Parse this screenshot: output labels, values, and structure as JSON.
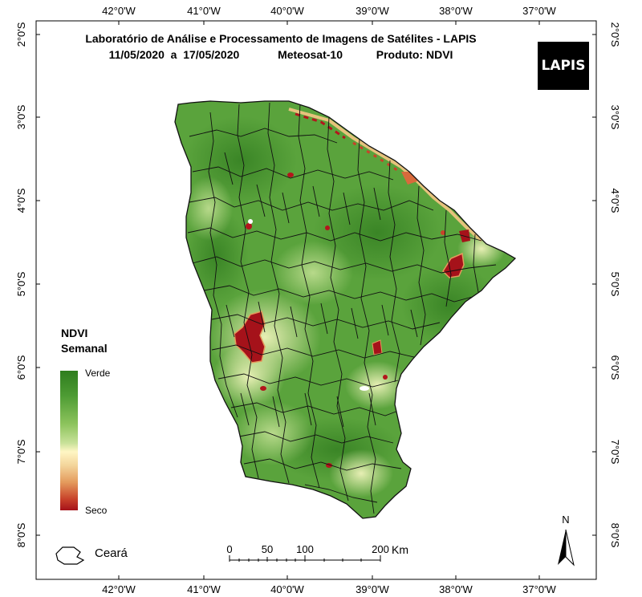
{
  "title": {
    "line1": "Laboratório de Análise e Processamento de Imagens de Satélites - LAPIS",
    "dates": "11/05/2020  a  17/05/2020",
    "satellite": "Meteosat-10",
    "product": "Produto: NDVI"
  },
  "logo_text": "LAPIS",
  "longitude_ticks": [
    "42°0'W",
    "41°0'W",
    "40°0'W",
    "39°0'W",
    "38°0'W",
    "37°0'W"
  ],
  "latitude_ticks": [
    "2°0'S",
    "3°0'S",
    "4°0'S",
    "5°0'S",
    "6°0'S",
    "7°0'S",
    "8°0'S"
  ],
  "legend": {
    "title_line1": "NDVI",
    "title_line2": "Semanal",
    "high_label": "Verde",
    "low_label": "Seco",
    "colors": [
      "#2e7d1e",
      "#8cc35c",
      "#fff6c4",
      "#e49a5c",
      "#a5121a"
    ]
  },
  "state_label": "Ceará",
  "scale_bar": {
    "ticks": [
      "0",
      "50",
      "100",
      "200"
    ],
    "unit": "Km"
  },
  "north_arrow": "N",
  "colors": {
    "vegetation": "#5aa33c",
    "dry": "#b3151c",
    "boundary": "#111111"
  }
}
